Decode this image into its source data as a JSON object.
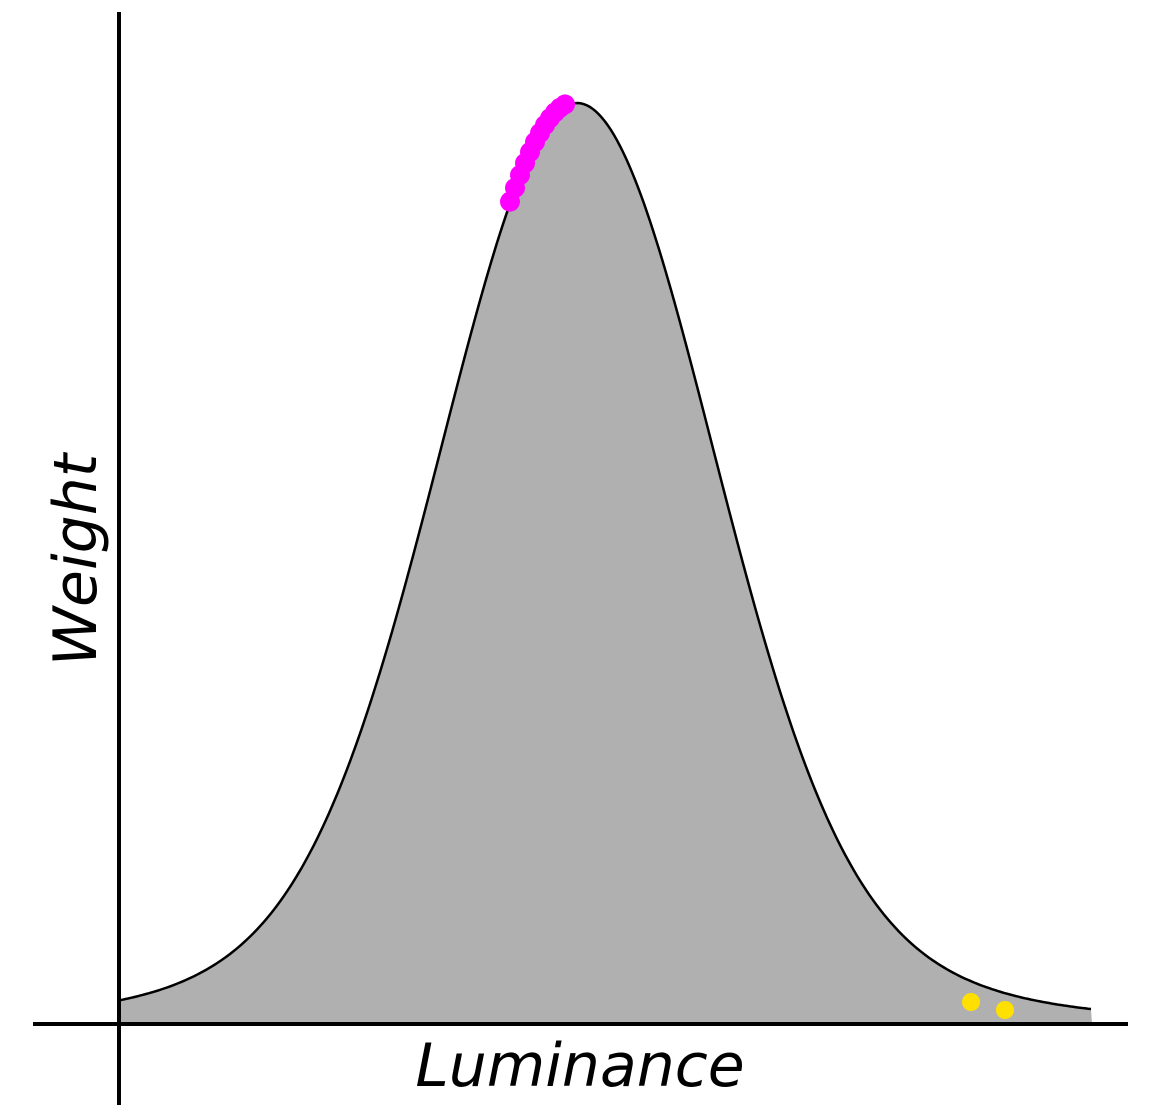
{
  "axes": {
    "x_label": "Luminance",
    "y_label": "Weight"
  }
}
